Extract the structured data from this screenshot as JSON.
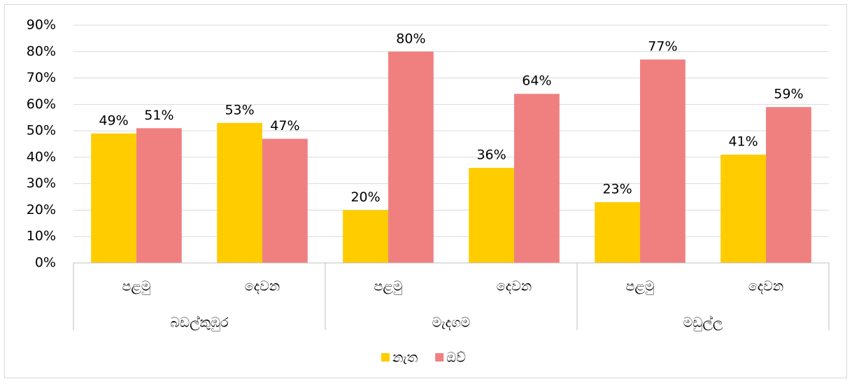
{
  "chart_data": {
    "type": "bar",
    "categories": [
      "පළමු",
      "දෙවන",
      "පළමු",
      "දෙවන",
      "පළමු",
      "දෙවන"
    ],
    "groups": [
      "බඩල්කුඹුර",
      "මැදගම",
      "මඩුල්ල"
    ],
    "series": [
      {
        "name": "නැත",
        "color": "#ffcc00",
        "values": [
          49,
          53,
          20,
          36,
          23,
          41
        ],
        "value_labels": [
          "49%",
          "53%",
          "20%",
          "36%",
          "23%",
          "41%"
        ]
      },
      {
        "name": "ඔව්",
        "color": "#f08080",
        "values": [
          51,
          47,
          80,
          64,
          77,
          59
        ],
        "value_labels": [
          "51%",
          "47%",
          "80%",
          "64%",
          "77%",
          "59%"
        ]
      }
    ],
    "ylim": [
      0,
      90
    ],
    "yticks": [
      {
        "value": 0,
        "label": "0%"
      },
      {
        "value": 10,
        "label": "10%"
      },
      {
        "value": 20,
        "label": "20%"
      },
      {
        "value": 30,
        "label": "30%"
      },
      {
        "value": 40,
        "label": "40%"
      },
      {
        "value": 50,
        "label": "50%"
      },
      {
        "value": 60,
        "label": "60%"
      },
      {
        "value": 70,
        "label": "70%"
      },
      {
        "value": 80,
        "label": "80%"
      },
      {
        "value": 90,
        "label": "90%"
      }
    ],
    "grid": true,
    "legend": "bottom"
  }
}
